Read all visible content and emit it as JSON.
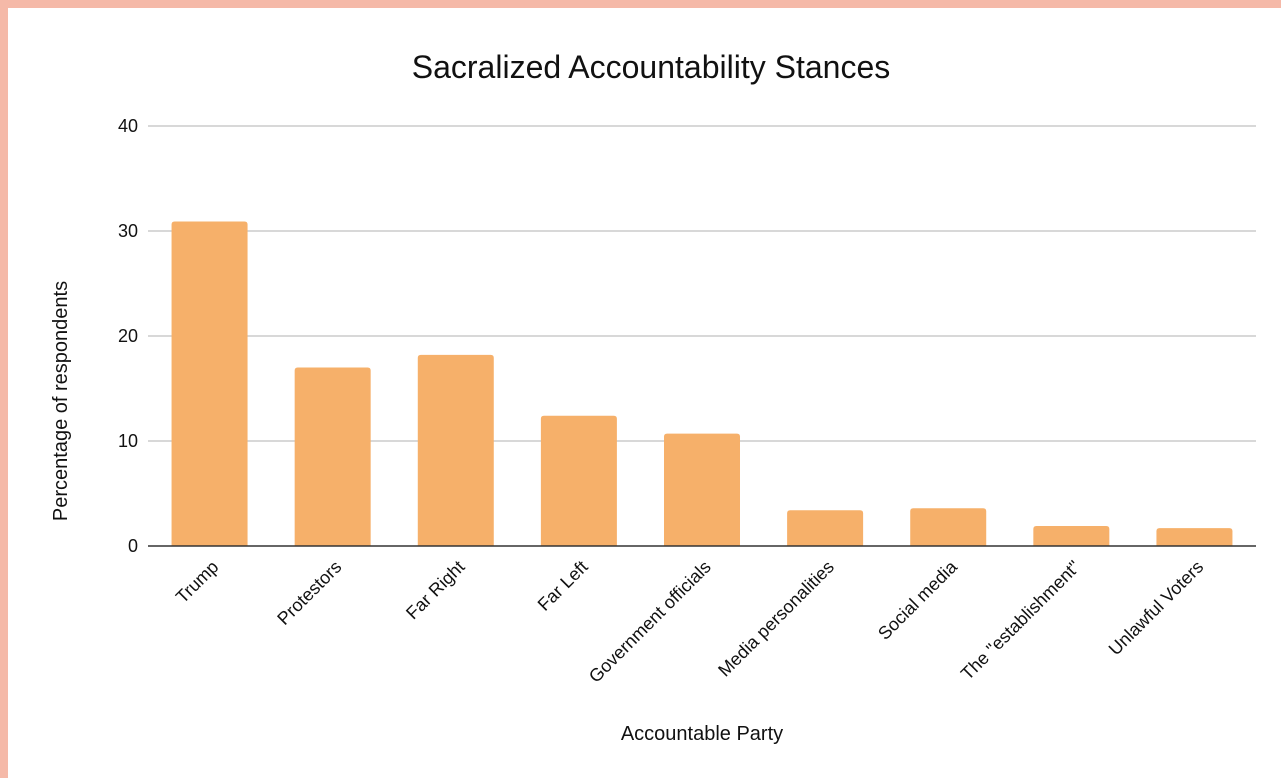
{
  "colors": {
    "page_border": "#f5b9a8",
    "background": "#ffffff",
    "bar": "#f6b06a",
    "gridline": "#cccccc",
    "baseline": "#333333",
    "text": "#111111"
  },
  "chart_data": {
    "type": "bar",
    "title": "Sacralized Accountability Stances",
    "xlabel": "Accountable Party",
    "ylabel": "Percentage of respondents",
    "categories": [
      "Trump",
      "Protestors",
      "Far Right",
      "Far Left",
      "Government officials",
      "Media personalities",
      "Social media",
      "The \"establishment\"",
      "Unlawful Voters"
    ],
    "values": [
      30.9,
      17.0,
      18.2,
      12.4,
      10.7,
      3.4,
      3.6,
      1.9,
      1.7
    ],
    "ylim": [
      0,
      40
    ],
    "yticks": [
      0,
      10,
      20,
      30,
      40
    ],
    "grid": true,
    "legend": "none"
  }
}
